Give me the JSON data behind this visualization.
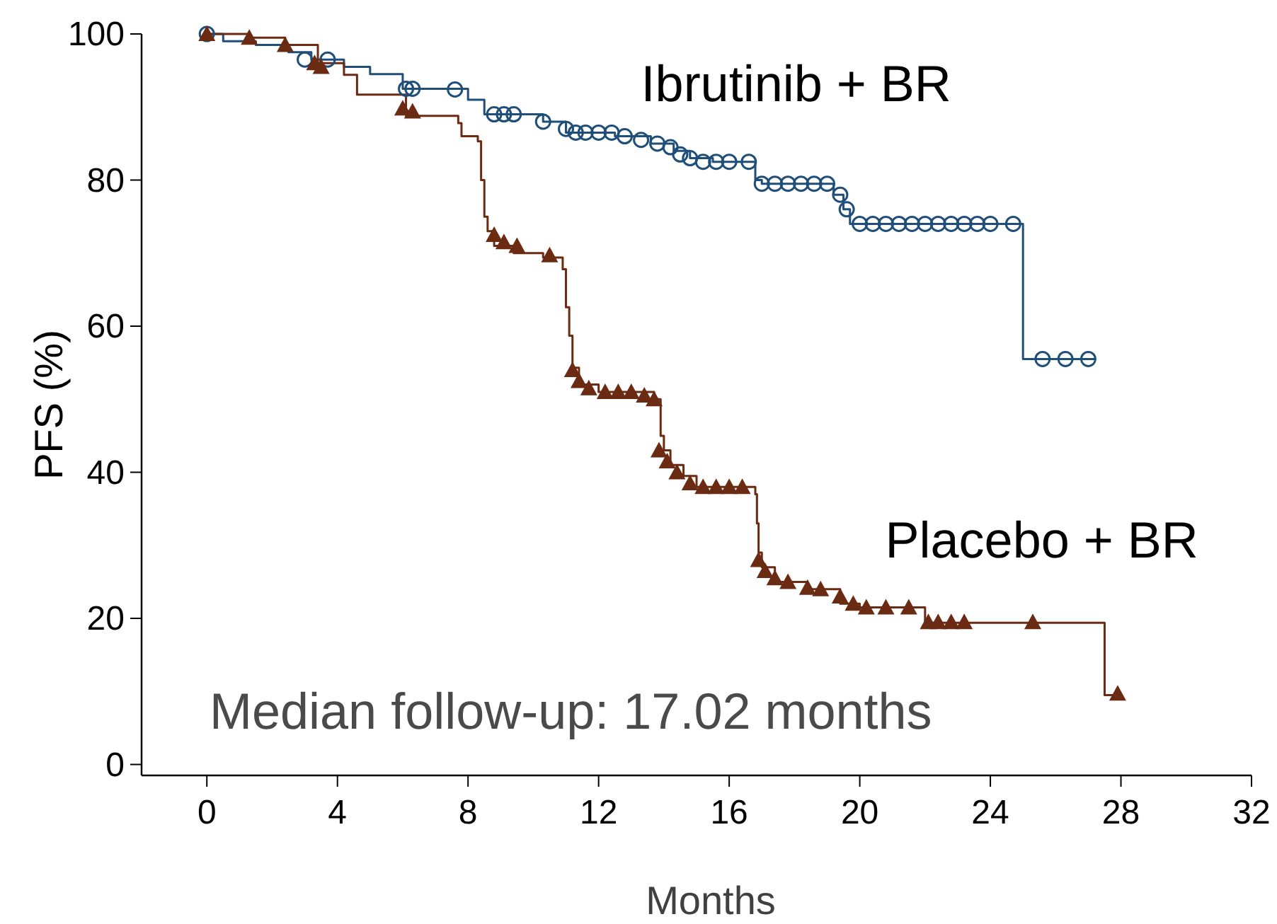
{
  "chart_data": {
    "type": "step",
    "xlabel": "Months",
    "ylabel": "PFS (%)",
    "xlim": [
      -2,
      32
    ],
    "ylim": [
      -1.5,
      100
    ],
    "xticks": [
      0,
      4,
      8,
      12,
      16,
      20,
      24,
      28,
      32
    ],
    "yticks": [
      0,
      20,
      40,
      60,
      80,
      100
    ],
    "grid": false,
    "annotations": [
      "Median follow-up: 17.02 months"
    ],
    "series": [
      {
        "name": "Ibrutinib + BR",
        "color": "#1f4e79",
        "marker": "none",
        "x": [
          0,
          0.5,
          1.5,
          2.5,
          3.2,
          4.2,
          5,
          6,
          8,
          8.5,
          10.3,
          11,
          12.5,
          13.6,
          14.3,
          14.8,
          15.5,
          16.8,
          17,
          19.2,
          19.5,
          19.7,
          25,
          27.2
        ],
        "values": [
          100,
          99,
          98.5,
          97.5,
          96.5,
          95.5,
          94.5,
          92.5,
          91,
          89,
          88,
          86.5,
          86,
          85,
          84,
          83,
          82.5,
          80,
          79.5,
          78,
          76,
          74,
          55.5,
          55.5
        ]
      },
      {
        "name": "Placebo + BR",
        "color": "#6b2a12",
        "marker": "none",
        "x": [
          0,
          1.3,
          2.4,
          3.4,
          4.2,
          4.6,
          6.1,
          7.7,
          7.8,
          8.3,
          8.4,
          8.5,
          8.6,
          8.8,
          9.4,
          10.3,
          10.9,
          11,
          11.1,
          11.2,
          11.4,
          12,
          13.7,
          13.9,
          14,
          14.2,
          14.6,
          15,
          16.8,
          16.85,
          16.9,
          17,
          17.4,
          18.4,
          19.4,
          20,
          22,
          27.5,
          27.9
        ],
        "values": [
          100,
          99.5,
          98.5,
          96,
          94.4,
          91.7,
          88.8,
          87.8,
          86,
          85.3,
          80,
          75,
          73,
          71,
          70,
          69.4,
          67.8,
          62.6,
          58.7,
          54.3,
          52,
          51,
          50,
          45,
          43,
          41,
          39.5,
          38,
          37,
          33,
          29,
          27,
          25,
          24,
          22,
          21.5,
          19.4,
          9.5,
          9.5
        ]
      },
      {
        "color": "#1f4e79",
        "type": "scatter",
        "marker": "circle",
        "x": [
          0,
          3,
          3.7,
          6.1,
          6.3,
          7.6,
          8.8,
          9.1,
          9.4,
          10.3,
          11,
          11.3,
          11.6,
          12,
          12.4,
          12.8,
          13.3,
          13.8,
          14.2,
          14.5,
          14.8,
          15.2,
          15.6,
          16,
          16.6,
          17,
          17.4,
          17.8,
          18.2,
          18.6,
          19,
          19.4,
          19.6,
          20,
          20.4,
          20.8,
          21.2,
          21.6,
          22,
          22.4,
          22.8,
          23.2,
          23.6,
          24,
          24.7,
          25.6,
          26.3,
          27
        ],
        "values": [
          100,
          96.5,
          96.5,
          92.5,
          92.5,
          92.4,
          89,
          89,
          89,
          88,
          87,
          86.5,
          86.5,
          86.5,
          86.5,
          86,
          85.5,
          85,
          84.5,
          83.5,
          83,
          82.5,
          82.5,
          82.5,
          82.5,
          79.5,
          79.5,
          79.5,
          79.5,
          79.5,
          79.5,
          78,
          76,
          74,
          74,
          74,
          74,
          74,
          74,
          74,
          74,
          74,
          74,
          74,
          74,
          55.5,
          55.5,
          55.5
        ]
      },
      {
        "color": "#6b2a12",
        "type": "scatter",
        "marker": "triangle",
        "x": [
          0,
          1.3,
          2.4,
          3.3,
          3.5,
          6,
          6.3,
          8.8,
          9.1,
          9.5,
          10.5,
          11.2,
          11.4,
          11.7,
          12.2,
          12.6,
          13,
          13.4,
          13.7,
          13.85,
          14.1,
          14.4,
          14.8,
          15.2,
          15.6,
          16,
          16.4,
          16.9,
          17.1,
          17.4,
          17.8,
          18.4,
          18.8,
          19.4,
          19.8,
          20.2,
          20.8,
          21.5,
          22.1,
          22.4,
          22.8,
          23.2,
          25.3,
          27.9
        ],
        "values": [
          100,
          99.5,
          98.5,
          96,
          95.5,
          89.8,
          89.4,
          72.5,
          71.5,
          71,
          69.7,
          54,
          52.5,
          51.5,
          51,
          51,
          51,
          50.5,
          50,
          43,
          41.5,
          40,
          38.5,
          38,
          38,
          38,
          38,
          28,
          26.5,
          25.5,
          25,
          24.2,
          24,
          23,
          22,
          21.5,
          21.5,
          21.5,
          19.5,
          19.5,
          19.5,
          19.5,
          19.5,
          9.7
        ]
      }
    ]
  }
}
